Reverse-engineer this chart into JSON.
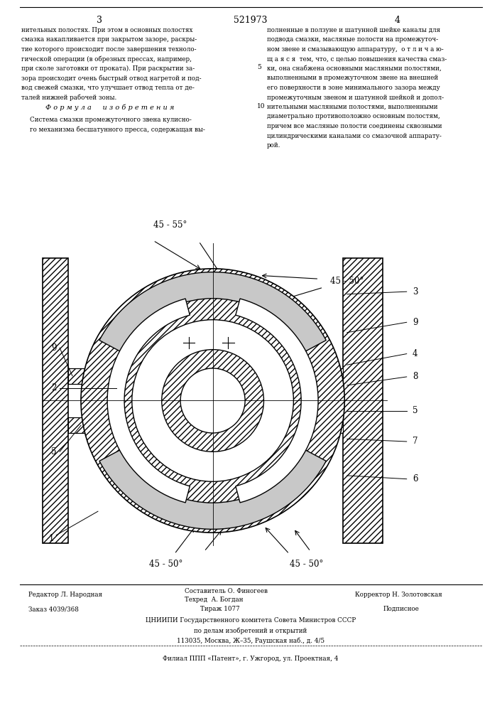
{
  "patent_number": "521973",
  "page_left": "3",
  "page_right": "4",
  "text_col1_lines": [
    "нительных полостях. При этом в основных полостях",
    "смазка накапливается при закрытом зазоре, раскры-",
    "тие которого происходит после завершения техноло-",
    "гической операции (в обрезных прессах, например,",
    "при сколе заготовки от проката). При раскрытии за-",
    "зора происходит очень быстрый отвод нагретой и под-",
    "вод свежей смазки, что улучшает отвод тепла от де-",
    "талей нижней рабочей зоны."
  ],
  "formula_header": "Ф о р м у л а     и з о б р е т е н и я",
  "formula_text_lines": [
    "Система смазки промежуточного звена кулисно-",
    "го механизма бесшатунного пресса, содержащая вы-"
  ],
  "text_col2_lines": [
    "полненные в ползуне и шатунной шейке каналы для",
    "подвода смазки, масляные полости на промежуточ-",
    "ном звене и смазывающую аппаратуру,  о т л и ч а ю-",
    "щ а я с я  тем, что, с целью повышения качества смаз-",
    "ки, она снабжена основными масляными полостями,",
    "выполненными в промежуточном звене на внешней",
    "его поверхности в зоне минимального зазора между",
    "промежуточным звеном и шатунной шейкой и допол-",
    "нительными масляными полостями, выполненными",
    "диаметрально противоположно основным полостям,",
    "причем все масляные полости соединены сквозными",
    "цилиндрическими каналами со смазочной аппарату-",
    "рой."
  ],
  "footer_editor": "Редактор Л. Народная",
  "footer_compiler": "Составитель О. Финогеев",
  "footer_techred": "Техред  А. Богдан",
  "footer_corrector": "Корректор Н. Золотовская",
  "footer_order": "Заказ 4039/368",
  "footer_tirazh": "Тираж 1077",
  "footer_podpisnoe": "Подписное",
  "footer_org": "ЦНИИПИ Государственного комитета Совета Министров СССР",
  "footer_affairs": "по делам изобретений и открытий",
  "footer_address": "113035, Москва, Ж–35, Раушская наб., д. 4/5",
  "footer_filial": "Филиал ППП «Патент», г. Ужгород, ул. Проектная, 4",
  "angle_top_left": "45 - 55°",
  "angle_top_right": "45 - 50°",
  "angle_bottom_left": "45 - 50°",
  "angle_bottom_right": "45 - 50°",
  "bg_color": "#ffffff",
  "line_color": "#000000"
}
